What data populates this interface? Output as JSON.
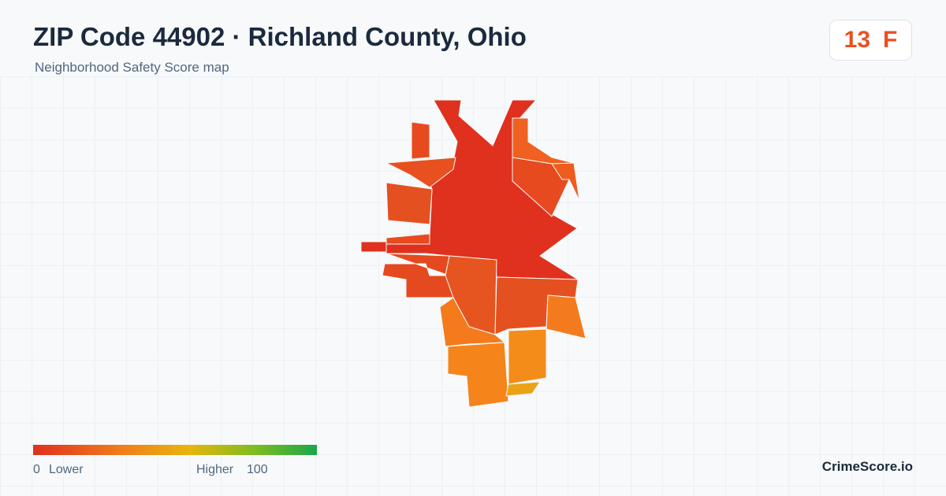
{
  "header": {
    "title": "ZIP Code 44902 · Richland County, Ohio",
    "subtitle": "Neighborhood Safety Score map"
  },
  "score": {
    "value": "13",
    "grade": "F"
  },
  "legend": {
    "min": "0",
    "low_label": "Lower",
    "high_label": "Higher",
    "max": "100"
  },
  "footer": {
    "brand": "CrimeScore.io"
  }
}
